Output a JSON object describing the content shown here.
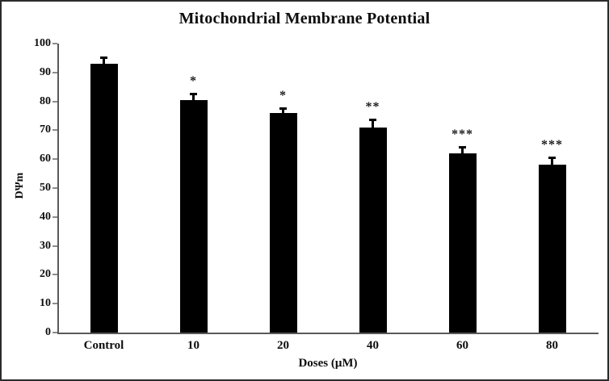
{
  "chart_data": {
    "type": "bar",
    "title": "Mitochondrial Membrane Potential",
    "xlabel": "Doses (μM)",
    "ylabel": "DΨm",
    "categories": [
      "Control",
      "10",
      "20",
      "40",
      "60",
      "80"
    ],
    "values": [
      93,
      80.5,
      76,
      71,
      62,
      58
    ],
    "errors": [
      2.5,
      2.5,
      2,
      3,
      2.5,
      3
    ],
    "significance": [
      "",
      "*",
      "*",
      "**",
      "***",
      "***"
    ],
    "ylim": [
      0,
      100
    ],
    "ytick_step": 10,
    "grid": false,
    "legend": "none",
    "bar_color": "#000000",
    "axis_color": "#595959",
    "text_color": "#0d0d0d",
    "background_color": "#ffffff"
  }
}
